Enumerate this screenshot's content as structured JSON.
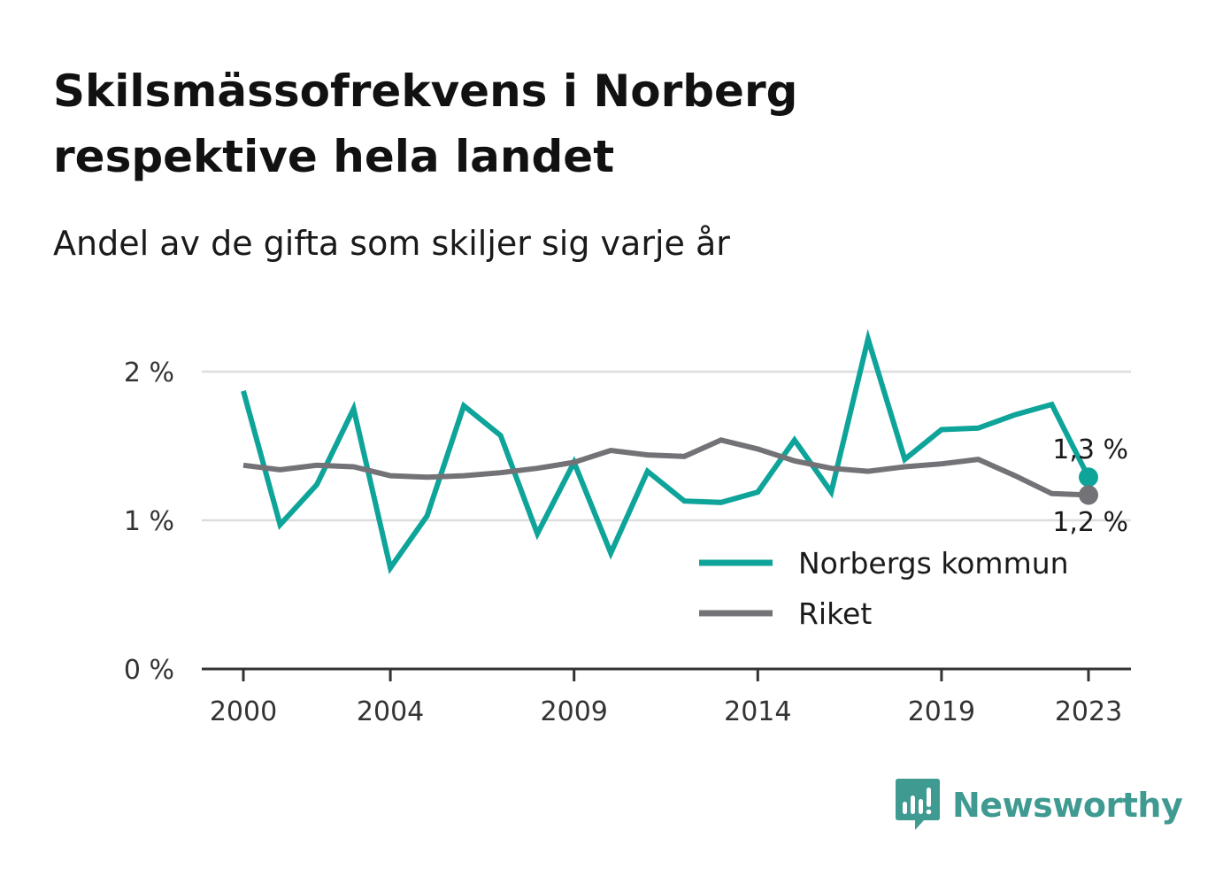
{
  "title_line1": "Skilsmässofrekvens i Norberg",
  "title_line2": "respektive hela landet",
  "subtitle": "Andel av de gifta som skiljer sig varje år",
  "brand": "Newsworthy",
  "colors": {
    "norberg": "#0ea49a",
    "riket": "#737277",
    "grid": "#dddddd",
    "axis": "#333333",
    "brand": "#3f9a92"
  },
  "chart_data": {
    "type": "line",
    "x": [
      2000,
      2001,
      2002,
      2003,
      2004,
      2005,
      2006,
      2007,
      2008,
      2009,
      2010,
      2011,
      2012,
      2013,
      2014,
      2015,
      2016,
      2017,
      2018,
      2019,
      2020,
      2021,
      2022,
      2023
    ],
    "x_ticks": [
      2000,
      2004,
      2009,
      2014,
      2019,
      2023
    ],
    "y_ticks": [
      {
        "value": 0,
        "label": "0 %"
      },
      {
        "value": 1,
        "label": "1 %"
      },
      {
        "value": 2,
        "label": "2 %"
      }
    ],
    "ylim": [
      0,
      2.2
    ],
    "xlim": [
      1999.2,
      2024.2
    ],
    "grid": true,
    "legend_position": "bottom-right",
    "series": [
      {
        "name": "Norbergs kommun",
        "color": "#0ea49a",
        "values": [
          1.87,
          0.97,
          1.24,
          1.75,
          0.68,
          1.03,
          1.77,
          1.57,
          0.91,
          1.39,
          0.78,
          1.33,
          1.13,
          1.12,
          1.19,
          1.54,
          1.19,
          2.22,
          1.41,
          1.61,
          1.62,
          1.71,
          1.78,
          1.29
        ],
        "end_label": "1,3 %"
      },
      {
        "name": "Riket",
        "color": "#737277",
        "values": [
          1.37,
          1.34,
          1.37,
          1.36,
          1.3,
          1.29,
          1.3,
          1.32,
          1.35,
          1.39,
          1.47,
          1.44,
          1.43,
          1.54,
          1.48,
          1.4,
          1.35,
          1.33,
          1.36,
          1.38,
          1.41,
          1.3,
          1.18,
          1.17
        ],
        "end_label": "1,2 %"
      }
    ]
  }
}
